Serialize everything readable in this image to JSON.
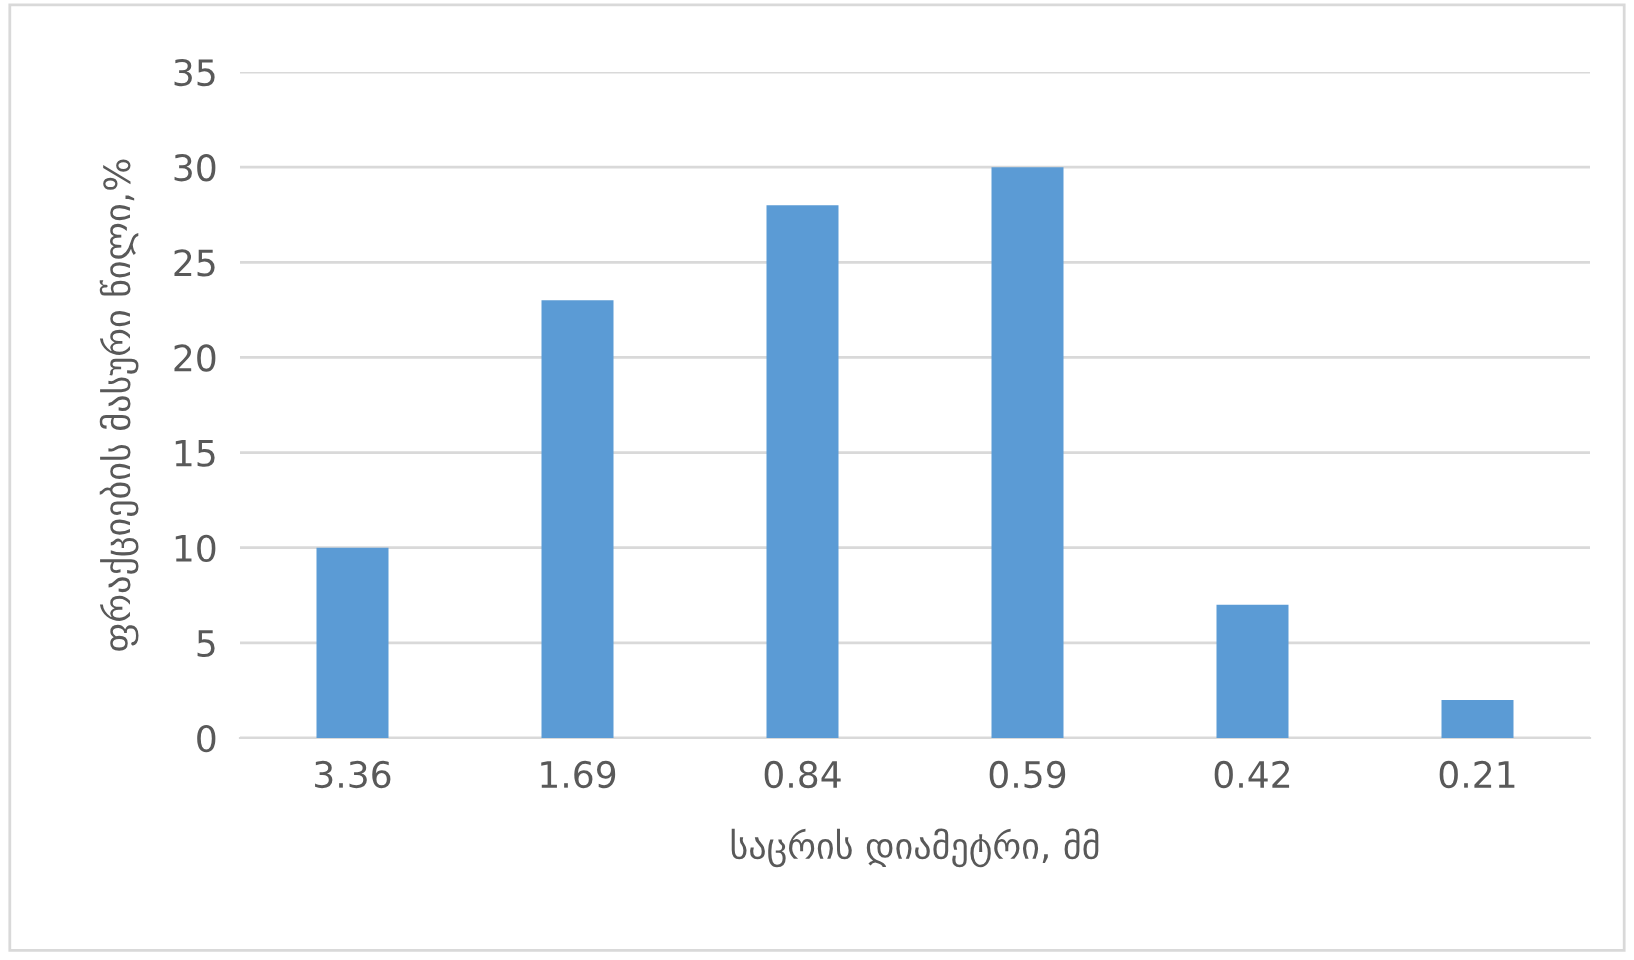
{
  "chart_data": {
    "type": "bar",
    "xlabel": "საცრის დიამეტრი, მმ",
    "ylabel": "ფრაქციების მასური წილი,%",
    "categories": [
      "3.36",
      "1.69",
      "0.84",
      "0.59",
      "0.42",
      "0.21"
    ],
    "values": [
      10,
      23,
      28,
      30,
      7,
      2
    ],
    "color": "#5b9bd5",
    "ylim": [
      0,
      35
    ],
    "yticks": [
      0,
      5,
      10,
      15,
      20,
      25,
      30,
      35
    ],
    "grid": "y",
    "legend": false
  }
}
